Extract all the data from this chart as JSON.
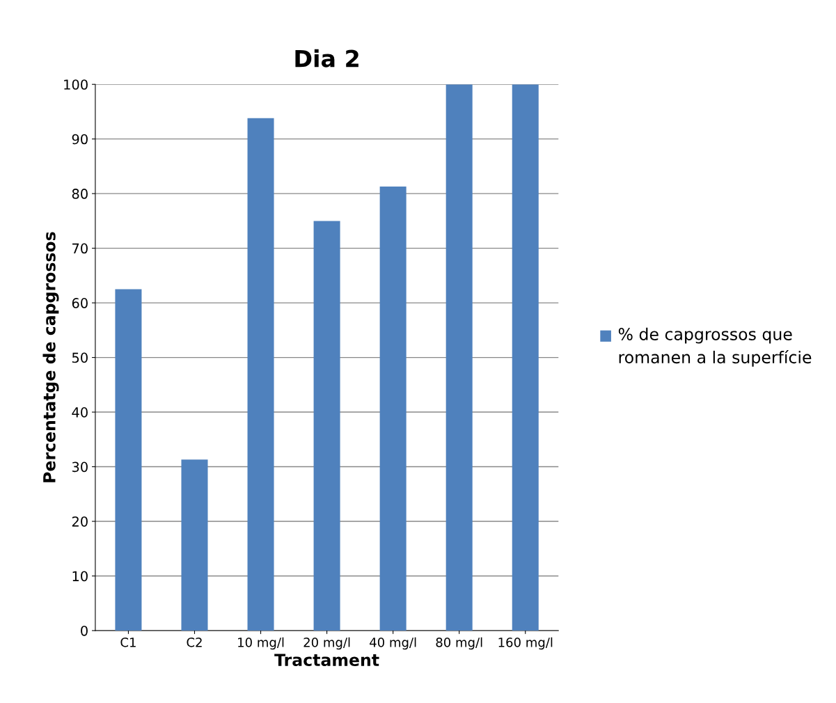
{
  "chart_data": {
    "type": "bar",
    "title": "Dia 2",
    "xlabel": "Tractament",
    "ylabel": "Percentatge de capgrossos",
    "categories": [
      "C1",
      "C2",
      "10 mg/l",
      "20 mg/l",
      "40 mg/l",
      "80 mg/l",
      "160 mg/l"
    ],
    "series": [
      {
        "name": "% de capgrossos que romanen a la superfície",
        "color": "#4f81bd",
        "values": [
          62.5,
          31.3,
          93.8,
          75,
          81.3,
          100,
          100
        ]
      }
    ],
    "ylim": [
      0,
      100
    ],
    "yticks": [
      0,
      10,
      20,
      30,
      40,
      50,
      60,
      70,
      80,
      90,
      100
    ],
    "grid": "y",
    "legend": "right"
  }
}
